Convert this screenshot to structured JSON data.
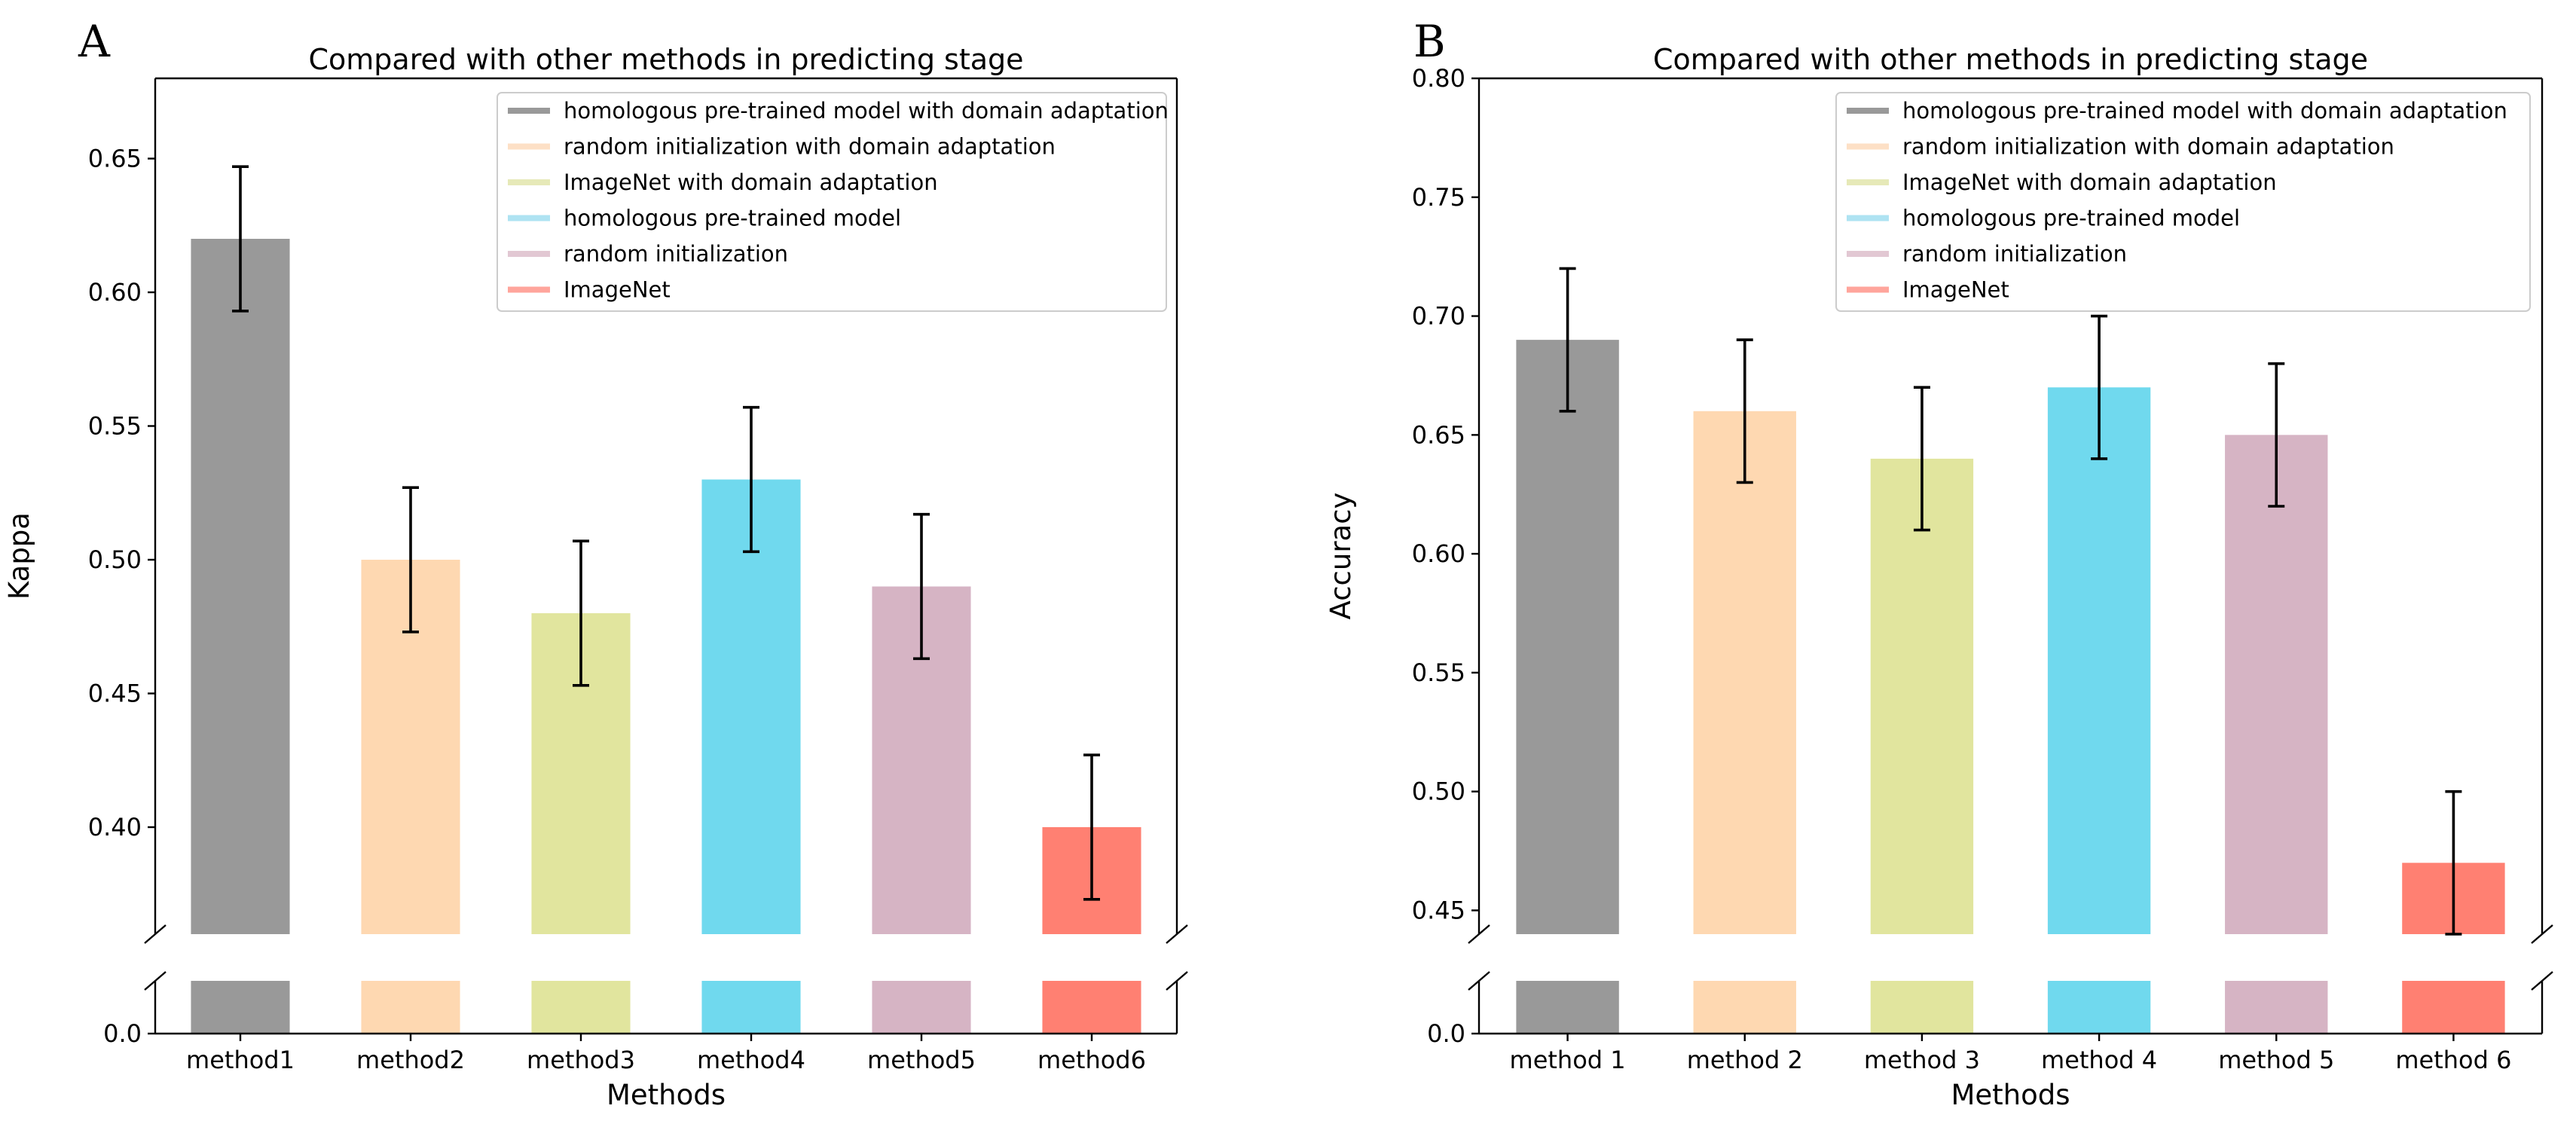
{
  "chart_data": [
    {
      "type": "bar",
      "panel_label": "A",
      "title": "Compared with other methods in predicting stage",
      "xlabel": "Methods",
      "ylabel": "Kappa",
      "categories": [
        "method1",
        "method2",
        "method3",
        "method4",
        "method5",
        "method6"
      ],
      "values": [
        0.62,
        0.5,
        0.48,
        0.53,
        0.49,
        0.4
      ],
      "errors": [
        0.027,
        0.027,
        0.027,
        0.027,
        0.027,
        0.027
      ],
      "colors": [
        "#999999",
        "#fed8b1",
        "#e1e59e",
        "#70d9ee",
        "#d6b4c4",
        "#ff8072"
      ],
      "ylim_upper": [
        0.36,
        0.68
      ],
      "yticks_upper": [
        "0.40",
        "0.45",
        "0.50",
        "0.55",
        "0.60",
        "0.65"
      ],
      "yticks_upper_values": [
        0.4,
        0.45,
        0.5,
        0.55,
        0.6,
        0.65
      ],
      "ytick_lower": "0.0",
      "axis_break": true,
      "legend": {
        "placement": "top-right",
        "entries": [
          "homologous pre-trained model with domain adaptation",
          "random initialization with domain adaptation",
          "ImageNet with domain adaptation",
          "homologous pre-trained model",
          "random initialization",
          "ImageNet"
        ],
        "colors": [
          "#999999",
          "#fde0c6",
          "#e6e9b8",
          "#aee3f2",
          "#e2c8d3",
          "#ffa59c"
        ]
      }
    },
    {
      "type": "bar",
      "panel_label": "B",
      "title": "Compared with other methods in predicting stage",
      "xlabel": "Methods",
      "ylabel": "Accuracy",
      "categories": [
        "method 1",
        "method 2",
        "method 3",
        "method 4",
        "method 5",
        "method 6"
      ],
      "values": [
        0.69,
        0.66,
        0.64,
        0.67,
        0.65,
        0.47
      ],
      "errors": [
        0.03,
        0.03,
        0.03,
        0.03,
        0.03,
        0.03
      ],
      "colors": [
        "#999999",
        "#fed8b1",
        "#e1e59e",
        "#70d9ee",
        "#d6b4c4",
        "#ff8072"
      ],
      "ylim_upper": [
        0.44,
        0.8
      ],
      "yticks_upper": [
        "0.45",
        "0.50",
        "0.55",
        "0.60",
        "0.65",
        "0.70",
        "0.75",
        "0.80"
      ],
      "yticks_upper_values": [
        0.45,
        0.5,
        0.55,
        0.6,
        0.65,
        0.7,
        0.75,
        0.8
      ],
      "ytick_lower": "0.0",
      "axis_break": true,
      "legend": {
        "placement": "top-right",
        "entries": [
          "homologous pre-trained model with domain adaptation",
          "random initialization with domain adaptation",
          "ImageNet with domain adaptation",
          "homologous pre-trained model",
          "random initialization",
          "ImageNet"
        ],
        "colors": [
          "#999999",
          "#fde0c6",
          "#e6e9b8",
          "#aee3f2",
          "#e2c8d3",
          "#ffa59c"
        ]
      }
    }
  ]
}
